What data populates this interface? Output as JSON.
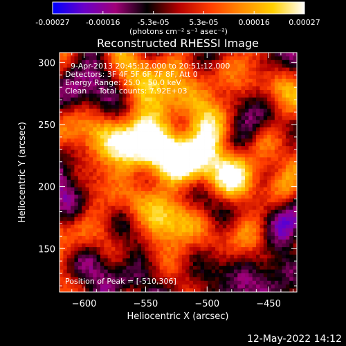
{
  "chart_data": {
    "type": "heatmap",
    "title": "Reconstructed RHESSI Image",
    "xlabel": "Heliocentric X (arcsec)",
    "ylabel": "Heliocentric Y (arcsec)",
    "xlim": [
      -620,
      -427
    ],
    "ylim": [
      115,
      308
    ],
    "xticks": [
      -600,
      -550,
      -500,
      -450
    ],
    "yticks": [
      150,
      200,
      250,
      300
    ],
    "colorbar": {
      "unit_label": "(photons cm⁻² s⁻¹ asec⁻²)",
      "range": [
        -0.00027,
        0.00027
      ],
      "tick_labels": [
        "-0.00027",
        "-0.00016",
        "-5.3e-05",
        "5.3e-05",
        "0.00016",
        "0.00027"
      ],
      "colors": [
        "#0000ff",
        "#6a00c8",
        "#a00078",
        "#000000",
        "#b40000",
        "#ff3c00",
        "#ff8c00",
        "#ffd000",
        "#ffffff"
      ]
    },
    "annotations": {
      "time_range": "9-Apr-2013 20:45:12.000 to 20:51:12.000",
      "detectors": "Detectors: 3F 4F 5F 6F 7F 8F, Att 0",
      "energy_range": "Energy Range: 25.0 - 50.0 keV",
      "method_counts": "Clean     Total counts: 7.92E+03",
      "peak": "Position of Peak = [-510,306]"
    },
    "peak": {
      "x": -510,
      "y": 306
    }
  },
  "footer": {
    "timestamp": "12-May-2022 14:12"
  }
}
